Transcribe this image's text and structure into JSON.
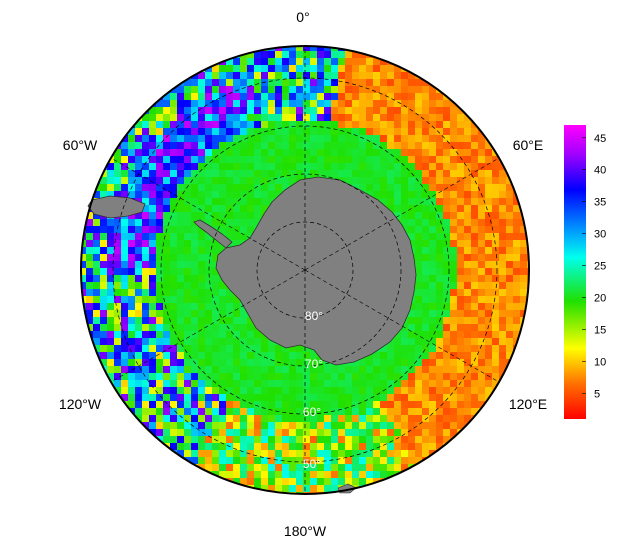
{
  "map": {
    "projection": "south-polar-stereographic",
    "longitude_labels": {
      "top": "0°",
      "upper_left": "60°W",
      "upper_right": "60°E",
      "lower_left": "120°W",
      "lower_right": "120°E",
      "bottom": "180°W"
    },
    "latitude_labels": [
      "80°",
      "70°",
      "60°",
      "50°"
    ],
    "land_color": "#808080",
    "graticule_style": "dashed"
  },
  "colorbar": {
    "min": 1,
    "max": 47,
    "ticks": [
      "5",
      "10",
      "15",
      "20",
      "25",
      "30",
      "35",
      "40",
      "45"
    ],
    "colors": [
      "#ff0000",
      "#ff8000",
      "#ffff00",
      "#00e000",
      "#00ffff",
      "#0000ff",
      "#ff00ff"
    ]
  }
}
